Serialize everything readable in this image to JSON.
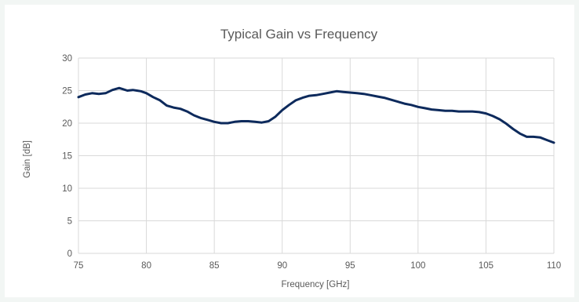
{
  "chart_data": {
    "type": "line",
    "title": "Typical Gain vs Frequency",
    "xlabel": "Frequency [GHz]",
    "ylabel": "Gain [dB]",
    "xlim": [
      75,
      110
    ],
    "ylim": [
      0,
      30
    ],
    "x_ticks": [
      75,
      80,
      85,
      90,
      95,
      100,
      105,
      110
    ],
    "y_ticks": [
      0,
      5,
      10,
      15,
      20,
      25,
      30
    ],
    "grid": true,
    "legend": "none",
    "line_color": "#0d2a5c",
    "series": [
      {
        "x": [
          75,
          75.5,
          76,
          76.5,
          77,
          77.5,
          78,
          78.3,
          78.6,
          79,
          79.3,
          79.6,
          80,
          80.5,
          81,
          81.5,
          82,
          82.5,
          83,
          83.5,
          84,
          84.5,
          85,
          85.5,
          86,
          86.5,
          87,
          87.5,
          88,
          88.5,
          89,
          89.5,
          90,
          90.5,
          91,
          91.5,
          92,
          92.5,
          93,
          93.5,
          94,
          94.5,
          95,
          95.5,
          96,
          96.5,
          97,
          97.5,
          98,
          98.5,
          99,
          99.5,
          100,
          100.5,
          101,
          101.5,
          102,
          102.5,
          103,
          103.5,
          104,
          104.5,
          105,
          105.5,
          106,
          106.5,
          107,
          107.5,
          108,
          108.5,
          109,
          109.5,
          110
        ],
        "values": [
          24.0,
          24.4,
          24.6,
          24.5,
          24.6,
          25.1,
          25.4,
          25.2,
          25.0,
          25.1,
          25.0,
          24.9,
          24.6,
          24.0,
          23.5,
          22.7,
          22.4,
          22.2,
          21.8,
          21.2,
          20.8,
          20.5,
          20.2,
          20.0,
          20.0,
          20.2,
          20.3,
          20.3,
          20.2,
          20.1,
          20.3,
          21.0,
          22.0,
          22.8,
          23.5,
          23.9,
          24.2,
          24.3,
          24.5,
          24.7,
          24.9,
          24.8,
          24.7,
          24.6,
          24.5,
          24.3,
          24.1,
          23.9,
          23.6,
          23.3,
          23.0,
          22.8,
          22.5,
          22.3,
          22.1,
          22.0,
          21.9,
          21.9,
          21.8,
          21.8,
          21.8,
          21.7,
          21.5,
          21.1,
          20.6,
          19.9,
          19.1,
          18.4,
          17.9,
          17.9,
          17.8,
          17.4,
          17.0
        ]
      }
    ]
  }
}
